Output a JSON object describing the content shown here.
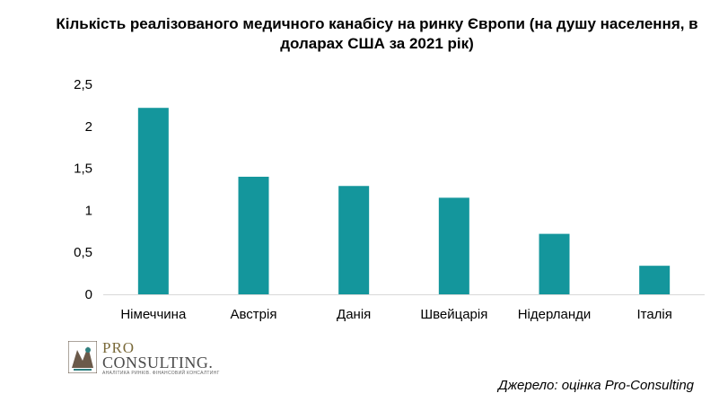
{
  "chart_data": {
    "type": "bar",
    "title": "Кількість реалізованого медичного канабісу на ринку Європи (на душу населення, в доларах США за 2021 рік)",
    "categories": [
      "Німеччина",
      "Австрія",
      "Данія",
      "Швейцарія",
      "Нідерланди",
      "Італія"
    ],
    "values": [
      2.22,
      1.4,
      1.29,
      1.15,
      0.72,
      0.34
    ],
    "ylim": [
      0,
      2.5
    ],
    "yticks": [
      "0",
      "0,5",
      "1",
      "1,5",
      "2",
      "2,5"
    ],
    "ytick_values": [
      0,
      0.5,
      1,
      1.5,
      2,
      2.5
    ],
    "xlabel": "",
    "ylabel": "",
    "grid": false,
    "bar_color": "#14969C",
    "axis_color": "#D9D9D9"
  },
  "logo": {
    "line1": "PRO",
    "line2": "CONSULTING.",
    "tagline": "АНАЛІТИКА РИНКІВ. ФІНАНСОВИЙ КОНСАЛТИНГ"
  },
  "source": "Джерело: оцінка Pro-Consulting"
}
